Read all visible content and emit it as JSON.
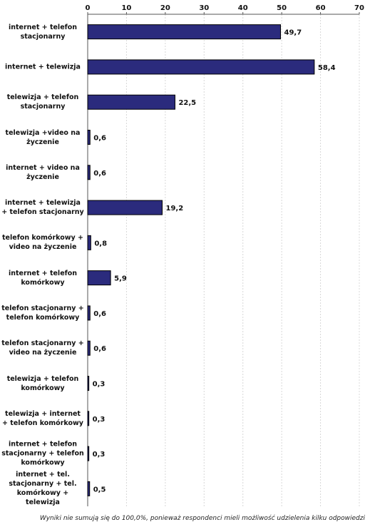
{
  "chart_data": {
    "type": "bar",
    "orientation": "horizontal",
    "categories": [
      "internet + telefon stacjonarny",
      "internet + telewizja",
      "telewizja + telefon stacjonarny",
      "telewizja +video na życzenie",
      "internet + video na życzenie",
      "internet + telewizja + telefon stacjonarny",
      "telefon komórkowy + video na życzenie",
      "internet + telefon komórkowy",
      "telefon stacjonarny + telefon komórkowy",
      "telefon stacjonarny + video na życzenie",
      "telewizja + telefon komórkowy",
      "telewizja + internet + telefon komórkowy",
      "internet + telefon stacjonarny + telefon komórkowy",
      "internet + tel. stacjonarny + tel. komórkowy + telewizja"
    ],
    "values": [
      49.7,
      58.4,
      22.5,
      0.6,
      0.6,
      19.2,
      0.8,
      5.9,
      0.6,
      0.6,
      0.3,
      0.3,
      0.3,
      0.5
    ],
    "value_labels": [
      "49,7",
      "58,4",
      "22,5",
      "0,6",
      "0,6",
      "19,2",
      "0,8",
      "5,9",
      "0,6",
      "0,6",
      "0,3",
      "0,3",
      "0,3",
      "0,5"
    ],
    "color": "#2b2b7d",
    "xlim": [
      0,
      70
    ],
    "xticks": [
      0,
      10,
      20,
      30,
      40,
      50,
      60,
      70
    ],
    "grid": true,
    "note": "Wyniki nie sumują się do 100,0%, ponieważ respondenci mieli możliwość udzielenia kilku odpowiedzi"
  }
}
